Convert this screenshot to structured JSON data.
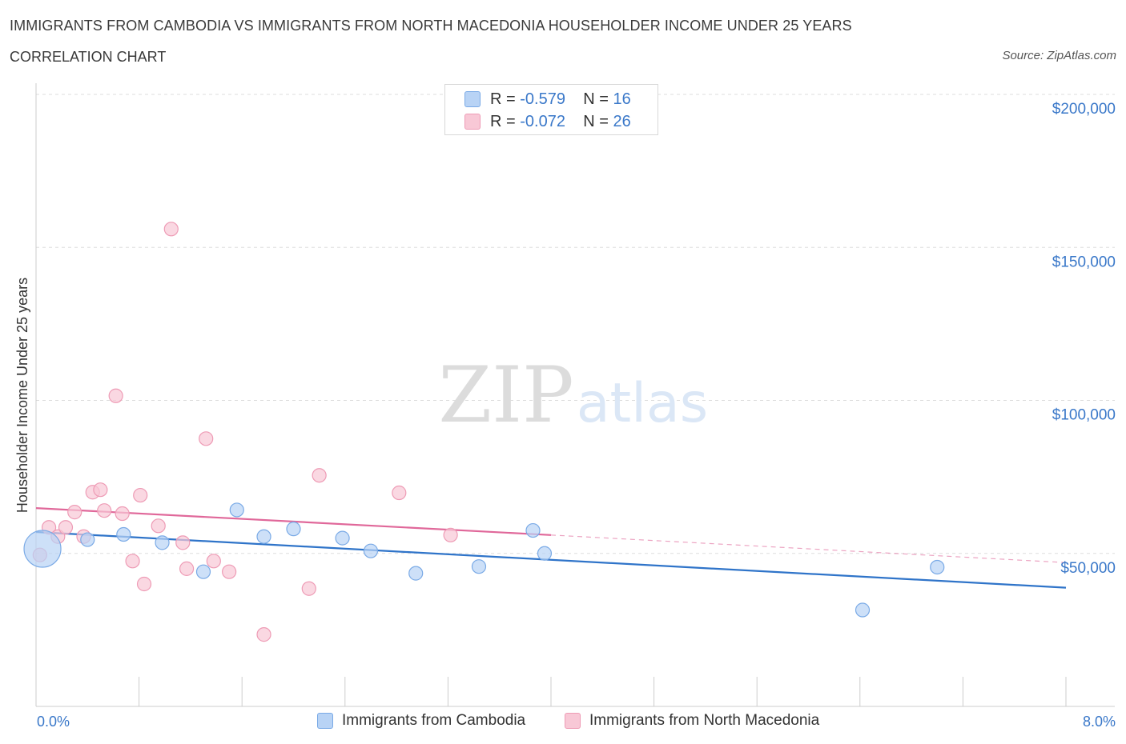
{
  "title": "IMMIGRANTS FROM CAMBODIA VS IMMIGRANTS FROM NORTH MACEDONIA HOUSEHOLDER INCOME UNDER 25 YEARS",
  "subtitle": "CORRELATION CHART",
  "source": "Source: ZipAtlas.com",
  "watermark": {
    "zip": "ZIP",
    "atlas": "atlas"
  },
  "legend": {
    "rows": [
      {
        "r_label": "R = ",
        "r_value": "-0.579",
        "n_label": "N = ",
        "n_value": "16"
      },
      {
        "r_label": "R = ",
        "r_value": "-0.072",
        "n_label": "N = ",
        "n_value": "26"
      }
    ]
  },
  "bottom_legend": {
    "cambodia": "Immigrants from Cambodia",
    "macedonia": "Immigrants from North Macedonia"
  },
  "colors": {
    "cambodia_fill": "#b8d3f5",
    "cambodia_stroke": "#7aaae6",
    "cambodia_line": "#2f74c9",
    "macedonia_fill": "#f8c8d6",
    "macedonia_stroke": "#ee9bb5",
    "macedonia_line": "#e0689a",
    "axis_text": "#3a78c9",
    "grid": "#dddddd"
  },
  "chart_data": {
    "type": "scatter",
    "title": "IMMIGRANTS FROM CAMBODIA VS IMMIGRANTS FROM NORTH MACEDONIA HOUSEHOLDER INCOME UNDER 25 YEARS",
    "xlabel": "",
    "ylabel": "Householder Income Under 25 years",
    "xlim": [
      0,
      8
    ],
    "ylim": [
      0,
      200000
    ],
    "x_tick_labels": [
      "0.0%",
      "8.0%"
    ],
    "y_ticks": [
      {
        "value": 50000,
        "label": "$50,000"
      },
      {
        "value": 100000,
        "label": "$100,000"
      },
      {
        "value": 150000,
        "label": "$150,000"
      },
      {
        "value": 200000,
        "label": "$200,000"
      }
    ],
    "series": [
      {
        "name": "Immigrants from Cambodia",
        "points": [
          {
            "x": 0.05,
            "y": 51500,
            "big": true
          },
          {
            "x": 0.4,
            "y": 54500
          },
          {
            "x": 0.68,
            "y": 56200
          },
          {
            "x": 0.98,
            "y": 53500
          },
          {
            "x": 1.3,
            "y": 44000
          },
          {
            "x": 1.56,
            "y": 64200
          },
          {
            "x": 1.77,
            "y": 55500
          },
          {
            "x": 2.0,
            "y": 58000
          },
          {
            "x": 2.38,
            "y": 55000
          },
          {
            "x": 2.6,
            "y": 50800
          },
          {
            "x": 2.95,
            "y": 43500
          },
          {
            "x": 3.44,
            "y": 45700
          },
          {
            "x": 3.86,
            "y": 57500
          },
          {
            "x": 3.95,
            "y": 50000
          },
          {
            "x": 6.42,
            "y": 31500
          },
          {
            "x": 7.0,
            "y": 45500
          }
        ],
        "trend": {
          "x1": 0.0,
          "y1": 57000,
          "x2": 8.0,
          "y2": 38800
        }
      },
      {
        "name": "Immigrants from North Macedonia",
        "points": [
          {
            "x": 0.03,
            "y": 49500
          },
          {
            "x": 0.1,
            "y": 58500
          },
          {
            "x": 0.17,
            "y": 55500
          },
          {
            "x": 0.23,
            "y": 58500
          },
          {
            "x": 0.3,
            "y": 63500
          },
          {
            "x": 0.37,
            "y": 55500
          },
          {
            "x": 0.44,
            "y": 70000
          },
          {
            "x": 0.5,
            "y": 70800
          },
          {
            "x": 0.53,
            "y": 64000
          },
          {
            "x": 0.62,
            "y": 101500
          },
          {
            "x": 0.67,
            "y": 63000
          },
          {
            "x": 0.75,
            "y": 47500
          },
          {
            "x": 0.81,
            "y": 69000
          },
          {
            "x": 0.84,
            "y": 40000
          },
          {
            "x": 0.95,
            "y": 59000
          },
          {
            "x": 1.05,
            "y": 156000
          },
          {
            "x": 1.14,
            "y": 53500
          },
          {
            "x": 1.17,
            "y": 45000
          },
          {
            "x": 1.32,
            "y": 87500
          },
          {
            "x": 1.38,
            "y": 47500
          },
          {
            "x": 1.5,
            "y": 44000
          },
          {
            "x": 1.77,
            "y": 23500
          },
          {
            "x": 2.12,
            "y": 38500
          },
          {
            "x": 2.2,
            "y": 75500
          },
          {
            "x": 2.82,
            "y": 69800
          },
          {
            "x": 3.22,
            "y": 56000
          }
        ],
        "trend": {
          "x1": 0.0,
          "y1": 64800,
          "x2": 4.0,
          "y2": 56000
        },
        "trend_dashed": {
          "x1": 4.0,
          "y1": 56000,
          "x2": 8.0,
          "y2": 47000
        }
      }
    ]
  }
}
